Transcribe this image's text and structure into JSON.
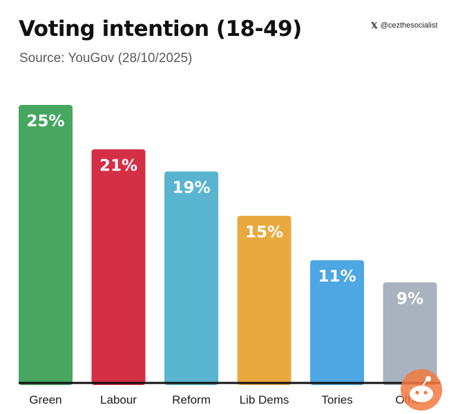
{
  "header": {
    "title": "Voting intention (18-49)",
    "subtitle": "Source: YouGov (28/10/2025)",
    "handle_icon": "x-logo-icon",
    "handle": "@cezthesocialist"
  },
  "watermark_icon": "reddit-alien-icon",
  "chart_data": {
    "type": "bar",
    "title": "Voting intention (18-49)",
    "subtitle": "Source: YouGov (28/10/2025)",
    "categories": [
      "Green",
      "Labour",
      "Reform",
      "Lib Dems",
      "Tories",
      "Other"
    ],
    "values": [
      25,
      21,
      19,
      15,
      11,
      9
    ],
    "value_labels": [
      "25%",
      "21%",
      "19%",
      "15%",
      "11%",
      "9%"
    ],
    "colors": [
      "#47a760",
      "#d32f45",
      "#59b5cf",
      "#eaa93e",
      "#4ea6e2",
      "#a9b3bf"
    ],
    "ylim": [
      0,
      25
    ],
    "grid": false,
    "legend": "none",
    "xlabel": "",
    "ylabel": ""
  }
}
